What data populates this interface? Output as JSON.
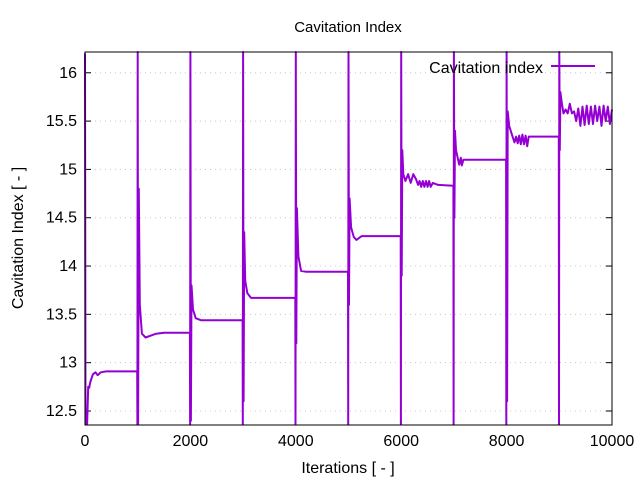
{
  "chart_data": {
    "type": "line",
    "title": "Cavitation Index",
    "xlabel": "Iterations [ - ]",
    "ylabel": "Cavitation Index [ - ]",
    "xlim": [
      0,
      10000
    ],
    "ylim": [
      12.355,
      16.215
    ],
    "xticks": [
      0,
      2000,
      4000,
      6000,
      8000,
      10000
    ],
    "yticks": [
      12.5,
      13,
      13.5,
      14,
      14.5,
      15,
      15.5,
      16
    ],
    "grid": "horizontal dotted",
    "legend_position": "top-right",
    "series": [
      {
        "name": "Cavitation index",
        "color": "#9400d3",
        "points": [
          [
            0,
            16.2
          ],
          [
            10,
            12.36
          ],
          [
            40,
            12.36
          ],
          [
            60,
            12.75
          ],
          [
            80,
            12.74
          ],
          [
            100,
            12.8
          ],
          [
            150,
            12.88
          ],
          [
            200,
            12.9
          ],
          [
            240,
            12.87
          ],
          [
            300,
            12.9
          ],
          [
            400,
            12.91
          ],
          [
            990,
            12.91
          ],
          [
            995,
            12.36
          ],
          [
            1000,
            16.22
          ],
          [
            1008,
            12.36
          ],
          [
            1020,
            14.8
          ],
          [
            1040,
            13.6
          ],
          [
            1080,
            13.3
          ],
          [
            1150,
            13.26
          ],
          [
            1250,
            13.28
          ],
          [
            1350,
            13.3
          ],
          [
            1500,
            13.31
          ],
          [
            1990,
            13.31
          ],
          [
            1995,
            12.36
          ],
          [
            2000,
            16.22
          ],
          [
            2010,
            12.4
          ],
          [
            2020,
            13.8
          ],
          [
            2050,
            13.55
          ],
          [
            2100,
            13.46
          ],
          [
            2200,
            13.44
          ],
          [
            2990,
            13.44
          ],
          [
            2995,
            12.36
          ],
          [
            3000,
            16.22
          ],
          [
            3010,
            12.6
          ],
          [
            3020,
            14.35
          ],
          [
            3040,
            13.85
          ],
          [
            3080,
            13.72
          ],
          [
            3150,
            13.67
          ],
          [
            3990,
            13.67
          ],
          [
            3995,
            12.36
          ],
          [
            4000,
            16.22
          ],
          [
            4010,
            13.2
          ],
          [
            4020,
            14.6
          ],
          [
            4050,
            14.1
          ],
          [
            4100,
            13.95
          ],
          [
            4200,
            13.94
          ],
          [
            4990,
            13.94
          ],
          [
            4995,
            12.36
          ],
          [
            5000,
            16.22
          ],
          [
            5010,
            13.6
          ],
          [
            5020,
            14.7
          ],
          [
            5050,
            14.4
          ],
          [
            5100,
            14.3
          ],
          [
            5150,
            14.27
          ],
          [
            5250,
            14.31
          ],
          [
            5990,
            14.31
          ],
          [
            5995,
            12.36
          ],
          [
            6000,
            16.22
          ],
          [
            6010,
            13.9
          ],
          [
            6020,
            15.2
          ],
          [
            6040,
            14.95
          ],
          [
            6080,
            14.88
          ],
          [
            6130,
            14.95
          ],
          [
            6180,
            14.86
          ],
          [
            6230,
            14.95
          ],
          [
            6280,
            14.9
          ],
          [
            6320,
            14.84
          ],
          [
            6350,
            14.88
          ],
          [
            6380,
            14.82
          ],
          [
            6410,
            14.88
          ],
          [
            6440,
            14.82
          ],
          [
            6470,
            14.88
          ],
          [
            6500,
            14.82
          ],
          [
            6530,
            14.88
          ],
          [
            6560,
            14.82
          ],
          [
            6600,
            14.86
          ],
          [
            6700,
            14.84
          ],
          [
            6990,
            14.83
          ],
          [
            6995,
            12.36
          ],
          [
            7000,
            16.22
          ],
          [
            7010,
            14.5
          ],
          [
            7020,
            15.4
          ],
          [
            7040,
            15.2
          ],
          [
            7080,
            15.1
          ],
          [
            7100,
            15.05
          ],
          [
            7130,
            15.12
          ],
          [
            7150,
            15.04
          ],
          [
            7180,
            15.1
          ],
          [
            7250,
            15.1
          ],
          [
            7990,
            15.1
          ],
          [
            7995,
            12.36
          ],
          [
            8000,
            16.22
          ],
          [
            8010,
            12.6
          ],
          [
            8020,
            15.6
          ],
          [
            8050,
            15.45
          ],
          [
            8100,
            15.36
          ],
          [
            8150,
            15.28
          ],
          [
            8180,
            15.34
          ],
          [
            8210,
            15.27
          ],
          [
            8240,
            15.35
          ],
          [
            8270,
            15.26
          ],
          [
            8300,
            15.36
          ],
          [
            8330,
            15.26
          ],
          [
            8360,
            15.35
          ],
          [
            8390,
            15.24
          ],
          [
            8420,
            15.34
          ],
          [
            8990,
            15.34
          ],
          [
            8995,
            12.36
          ],
          [
            9000,
            16.22
          ],
          [
            9010,
            15.2
          ],
          [
            9020,
            15.8
          ],
          [
            9050,
            15.68
          ],
          [
            9080,
            15.58
          ],
          [
            9120,
            15.62
          ],
          [
            9160,
            15.58
          ],
          [
            9200,
            15.68
          ],
          [
            9240,
            15.58
          ],
          [
            9280,
            15.6
          ],
          [
            9320,
            15.5
          ],
          [
            9360,
            15.63
          ],
          [
            9400,
            15.45
          ],
          [
            9440,
            15.65
          ],
          [
            9480,
            15.46
          ],
          [
            9520,
            15.66
          ],
          [
            9560,
            15.47
          ],
          [
            9600,
            15.65
          ],
          [
            9640,
            15.47
          ],
          [
            9680,
            15.66
          ],
          [
            9720,
            15.5
          ],
          [
            9760,
            15.65
          ],
          [
            9800,
            15.45
          ],
          [
            9840,
            15.66
          ],
          [
            9880,
            15.5
          ],
          [
            9920,
            15.65
          ],
          [
            9960,
            15.47
          ],
          [
            10000,
            15.62
          ]
        ]
      }
    ]
  }
}
